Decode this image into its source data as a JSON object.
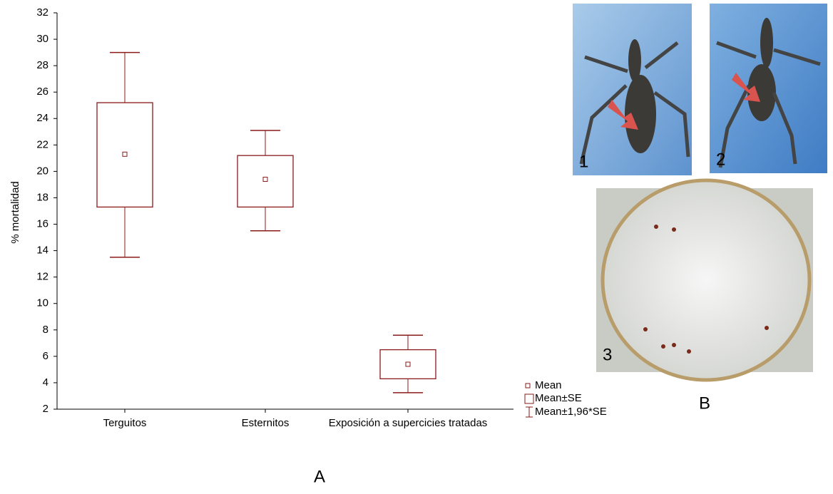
{
  "chart_data": {
    "type": "box",
    "ylabel": "% mortalidad",
    "categories": [
      "Terguitos",
      "Esternitos",
      "Exposición a supercicies tratadas"
    ],
    "mean": [
      21.3,
      19.4,
      5.4
    ],
    "se_low": [
      17.3,
      17.3,
      4.3
    ],
    "se_high": [
      25.2,
      21.2,
      6.5
    ],
    "ci_low": [
      13.5,
      15.5,
      3.25
    ],
    "ci_high": [
      29.0,
      23.1,
      7.6
    ],
    "legend": [
      "Mean",
      "Mean±SE",
      "Mean±1,96*SE"
    ],
    "color": "#8b1a1a",
    "ylim": [
      2,
      32
    ],
    "yticks": [
      2,
      4,
      6,
      8,
      10,
      12,
      14,
      16,
      18,
      20,
      22,
      24,
      26,
      28,
      30,
      32
    ]
  },
  "panel_labels": {
    "a": "A",
    "b": "B"
  },
  "photos": [
    {
      "label": "1"
    },
    {
      "label": "2"
    },
    {
      "label": "3"
    }
  ]
}
